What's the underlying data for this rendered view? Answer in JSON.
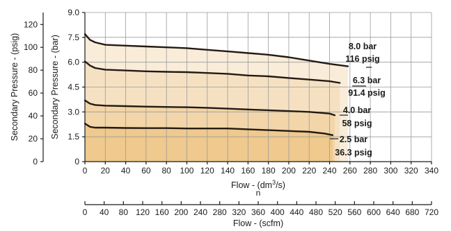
{
  "chart_data": {
    "type": "line",
    "x": {
      "label_prefix": "Flow - (dm",
      "label_sup": "3",
      "label_suffix": "/s)",
      "label_sub_n": "n",
      "range": [
        0,
        340
      ],
      "ticks": [
        0,
        20,
        40,
        60,
        80,
        100,
        120,
        140,
        160,
        180,
        200,
        220,
        240,
        260,
        280,
        300,
        320,
        340
      ]
    },
    "x_secondary": {
      "label": "Flow - (scfm)",
      "range": [
        0,
        720
      ],
      "ticks": [
        0,
        40,
        80,
        120,
        160,
        200,
        240,
        280,
        320,
        360,
        400,
        440,
        480,
        520,
        560,
        600,
        640,
        680,
        720
      ]
    },
    "y": {
      "label": "Secondary Pressure - (bar)",
      "range": [
        0,
        9
      ],
      "ticks": [
        "0",
        "1.5",
        "3.0",
        "4.5",
        "6.0",
        "7.5",
        "9.0"
      ]
    },
    "y_secondary": {
      "label": "Secondary Pressure - (psig)",
      "range": [
        0,
        130.5
      ],
      "ticks": [
        0,
        20,
        40,
        60,
        80,
        100,
        120
      ]
    },
    "series": [
      {
        "name_bar": "8.0 bar",
        "name_psig": "116 psig",
        "color": "#f9ecd8",
        "x": [
          0,
          5,
          10,
          20,
          40,
          60,
          80,
          100,
          120,
          140,
          160,
          180,
          200,
          220,
          240,
          258
        ],
        "y": [
          7.7,
          7.35,
          7.2,
          7.05,
          7.0,
          6.95,
          6.9,
          6.85,
          6.75,
          6.65,
          6.55,
          6.45,
          6.3,
          6.1,
          5.9,
          5.75
        ]
      },
      {
        "name_bar": "6.3 bar",
        "name_psig": "91.4 psig",
        "color": "#f5e1c2",
        "x": [
          0,
          5,
          10,
          20,
          40,
          60,
          80,
          100,
          120,
          140,
          160,
          180,
          200,
          220,
          240,
          250
        ],
        "y": [
          6.05,
          5.8,
          5.65,
          5.55,
          5.5,
          5.45,
          5.42,
          5.4,
          5.35,
          5.3,
          5.2,
          5.15,
          5.05,
          4.95,
          4.85,
          4.75
        ]
      },
      {
        "name_bar": "4.0 bar",
        "name_psig": "58 psig",
        "color": "#f2d5a8",
        "x": [
          0,
          5,
          10,
          20,
          40,
          60,
          80,
          100,
          120,
          140,
          160,
          180,
          200,
          220,
          240,
          245
        ],
        "y": [
          3.7,
          3.5,
          3.42,
          3.38,
          3.35,
          3.32,
          3.3,
          3.28,
          3.25,
          3.2,
          3.15,
          3.1,
          3.05,
          3.0,
          2.9,
          2.8
        ]
      },
      {
        "name_bar": "2.5 bar",
        "name_psig": "36.3 psig",
        "color": "#efc98d",
        "x": [
          0,
          5,
          10,
          20,
          40,
          60,
          80,
          100,
          120,
          140,
          160,
          180,
          200,
          220,
          235,
          243
        ],
        "y": [
          2.3,
          2.1,
          2.05,
          2.05,
          2.03,
          2.02,
          2.02,
          2.0,
          2.0,
          2.0,
          1.95,
          1.9,
          1.85,
          1.8,
          1.7,
          1.6
        ]
      }
    ],
    "grid": true
  }
}
